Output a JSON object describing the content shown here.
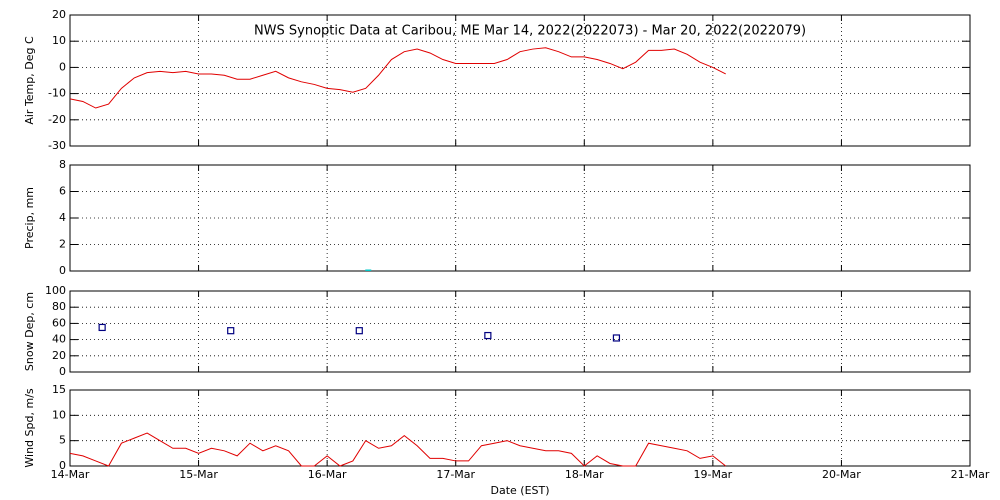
{
  "chart_data": [
    {
      "type": "line",
      "title": "NWS Synoptic Data at Caribou, ME   Mar 14, 2022(2022073) - Mar 20, 2022(2022079)",
      "ylabel": "Air Temp, Deg C",
      "xlim": [
        0,
        7
      ],
      "xticks": [
        0,
        1,
        2,
        3,
        4,
        5,
        6,
        7
      ],
      "ylim": [
        -30,
        20
      ],
      "yticks": [
        -30,
        -20,
        -10,
        0,
        10,
        20
      ],
      "grid": true,
      "x": [
        0,
        0.1,
        0.2,
        0.3,
        0.4,
        0.5,
        0.6,
        0.7,
        0.8,
        0.9,
        1.0,
        1.1,
        1.2,
        1.3,
        1.4,
        1.5,
        1.6,
        1.7,
        1.8,
        1.9,
        2.0,
        2.1,
        2.2,
        2.3,
        2.4,
        2.5,
        2.6,
        2.7,
        2.8,
        2.9,
        3.0,
        3.1,
        3.2,
        3.3,
        3.4,
        3.5,
        3.6,
        3.7,
        3.8,
        3.9,
        4.0,
        4.1,
        4.2,
        4.3,
        4.4,
        4.5,
        4.6,
        4.7,
        4.8,
        4.9,
        5.0,
        5.1
      ],
      "series": [
        {
          "color": "#e00000",
          "values": [
            -12,
            -13,
            -15.5,
            -14,
            -8,
            -4,
            -2,
            -1.5,
            -2,
            -1.5,
            -2.5,
            -2.5,
            -3,
            -4.5,
            -4.5,
            -3,
            -1.5,
            -4,
            -5.5,
            -6.5,
            -8,
            -8.5,
            -9.5,
            -8,
            -3,
            3,
            6,
            7,
            5.5,
            3,
            1.5,
            1.5,
            1.5,
            1.5,
            3,
            6,
            7,
            7.5,
            6,
            4,
            4,
            3,
            1.5,
            -0.5,
            2,
            6.5,
            6.5,
            7,
            5,
            2,
            0,
            -2.5
          ]
        }
      ]
    },
    {
      "type": "bar",
      "ylabel": "Precip, mm",
      "xlim": [
        0,
        7
      ],
      "xticks": [
        0,
        1,
        2,
        3,
        4,
        5,
        6,
        7
      ],
      "ylim": [
        0,
        8
      ],
      "yticks": [
        0,
        2,
        4,
        6,
        8
      ],
      "grid": true,
      "x": [
        2.32
      ],
      "series": [
        {
          "color": "#00c8c8",
          "values": [
            0
          ]
        }
      ]
    },
    {
      "type": "scatter",
      "ylabel": "Snow Dep, cm",
      "xlim": [
        0,
        7
      ],
      "xticks": [
        0,
        1,
        2,
        3,
        4,
        5,
        6,
        7
      ],
      "ylim": [
        0,
        100
      ],
      "yticks": [
        0,
        20,
        40,
        60,
        80,
        100
      ],
      "grid": true,
      "x": [
        0.25,
        1.25,
        2.25,
        3.25,
        4.25
      ],
      "series": [
        {
          "color": "#000080",
          "values": [
            55,
            51,
            51,
            45,
            42
          ]
        }
      ]
    },
    {
      "type": "line",
      "ylabel": "Wind Spd, m/s",
      "xlabel": "Date (EST)",
      "xlim": [
        0,
        7
      ],
      "xticks": [
        {
          "value": 0,
          "label": "14-Mar"
        },
        {
          "value": 1,
          "label": "15-Mar"
        },
        {
          "value": 2,
          "label": "16-Mar"
        },
        {
          "value": 3,
          "label": "17-Mar"
        },
        {
          "value": 4,
          "label": "18-Mar"
        },
        {
          "value": 5,
          "label": "19-Mar"
        },
        {
          "value": 6,
          "label": "20-Mar"
        },
        {
          "value": 7,
          "label": "21-Mar"
        }
      ],
      "ylim": [
        0,
        15
      ],
      "yticks": [
        0,
        5,
        10,
        15
      ],
      "grid": true,
      "x": [
        0,
        0.1,
        0.2,
        0.3,
        0.4,
        0.5,
        0.6,
        0.7,
        0.8,
        0.9,
        1.0,
        1.1,
        1.2,
        1.3,
        1.4,
        1.5,
        1.6,
        1.7,
        1.8,
        1.9,
        2.0,
        2.1,
        2.2,
        2.3,
        2.4,
        2.5,
        2.6,
        2.7,
        2.8,
        2.9,
        3.0,
        3.1,
        3.2,
        3.3,
        3.4,
        3.5,
        3.6,
        3.7,
        3.8,
        3.9,
        4.0,
        4.1,
        4.2,
        4.3,
        4.4,
        4.5,
        4.6,
        4.7,
        4.8,
        4.9,
        5.0,
        5.1
      ],
      "series": [
        {
          "color": "#e00000",
          "values": [
            2.5,
            2,
            1,
            0,
            4.5,
            5.5,
            6.5,
            5,
            3.5,
            3.5,
            2.5,
            3.5,
            3,
            2,
            4.5,
            3,
            4,
            3,
            0,
            0,
            2,
            0,
            1,
            5,
            3.5,
            4,
            6,
            4,
            1.5,
            1.5,
            1,
            1,
            4,
            4.5,
            5,
            4,
            3.5,
            3,
            3,
            2.5,
            0,
            2,
            0.5,
            0,
            0,
            4.5,
            4,
            3.5,
            3,
            1.5,
            2,
            0
          ]
        }
      ]
    }
  ]
}
